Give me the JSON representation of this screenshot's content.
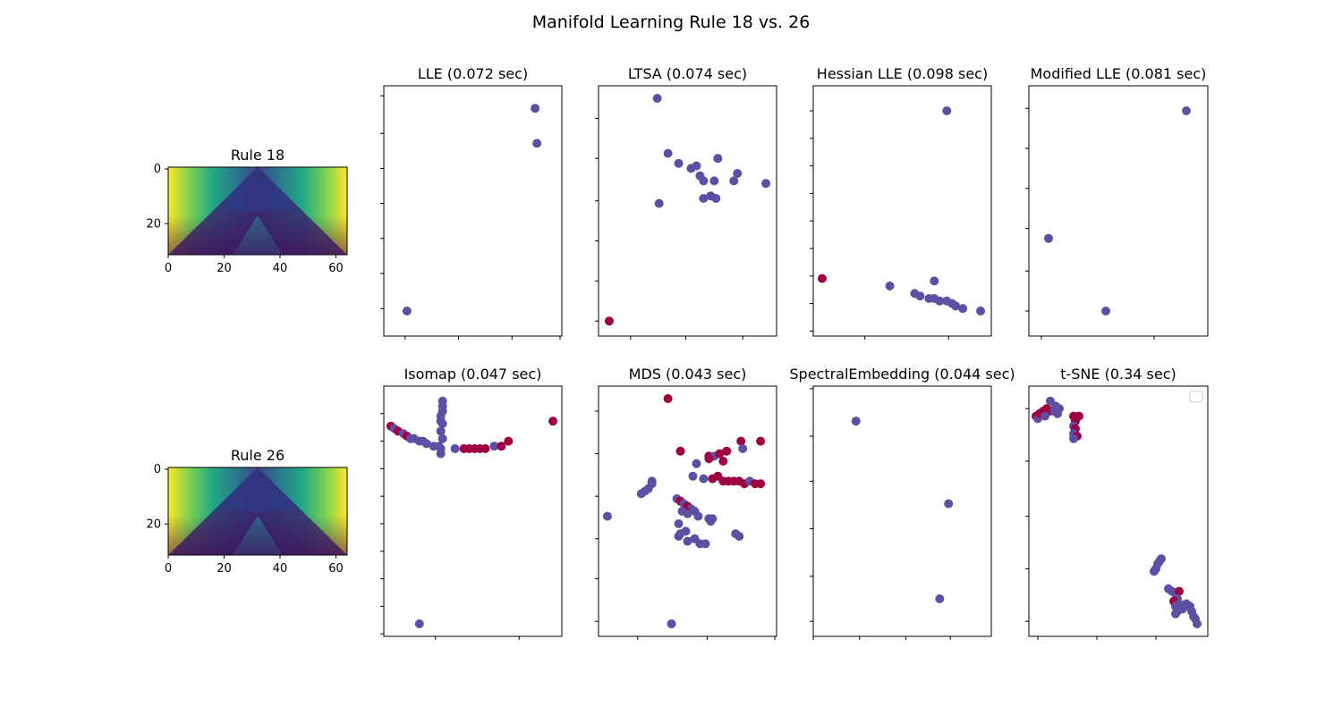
{
  "figure": {
    "suptitle": "Manifold Learning Rule 18 vs. 26"
  },
  "colors": {
    "class_a": "#5e4fa2",
    "class_b": "#9e0142"
  },
  "chart_data": [
    {
      "type": "heatmap",
      "panel": "rule18",
      "title": "Rule 18",
      "colormap": "viridis",
      "xlim": [
        0,
        64
      ],
      "ylim": [
        0,
        32
      ],
      "xticks": [
        "0",
        "20",
        "40",
        "60"
      ],
      "yticks": [
        "0",
        "20"
      ],
      "y_inverted": true
    },
    {
      "type": "heatmap",
      "panel": "rule26",
      "title": "Rule 26",
      "colormap": "viridis",
      "xlim": [
        0,
        64
      ],
      "ylim": [
        0,
        32
      ],
      "xticks": [
        "0",
        "20",
        "40",
        "60"
      ],
      "yticks": [
        "0",
        "20"
      ],
      "y_inverted": true
    },
    {
      "type": "scatter",
      "panel": "lle",
      "title": "LLE (0.072 sec)",
      "xlim": [
        0,
        1
      ],
      "ylim": [
        0,
        1
      ],
      "xticks": [
        0.12,
        0.42,
        0.72,
        0.99
      ],
      "yticks": [
        0.11,
        0.25,
        0.39,
        0.53,
        0.67,
        0.81,
        0.96
      ],
      "points": [
        {
          "x": 0.13,
          "y": 0.1,
          "c": "a"
        },
        {
          "x": 0.85,
          "y": 0.91,
          "c": "a"
        },
        {
          "x": 0.86,
          "y": 0.77,
          "c": "a"
        }
      ]
    },
    {
      "type": "scatter",
      "panel": "ltsa",
      "title": "LTSA (0.074 sec)",
      "xlim": [
        0,
        1
      ],
      "ylim": [
        0,
        1
      ],
      "xticks": [
        0.18,
        0.49,
        0.81
      ],
      "yticks": [
        0.06,
        0.22,
        0.38,
        0.54,
        0.71,
        0.87
      ],
      "points": [
        {
          "x": 0.06,
          "y": 0.06,
          "c": "b"
        },
        {
          "x": 0.33,
          "y": 0.95,
          "c": "a"
        },
        {
          "x": 0.34,
          "y": 0.53,
          "c": "a"
        },
        {
          "x": 0.39,
          "y": 0.73,
          "c": "a"
        },
        {
          "x": 0.45,
          "y": 0.69,
          "c": "a"
        },
        {
          "x": 0.52,
          "y": 0.67,
          "c": "a"
        },
        {
          "x": 0.55,
          "y": 0.68,
          "c": "a"
        },
        {
          "x": 0.57,
          "y": 0.64,
          "c": "a"
        },
        {
          "x": 0.59,
          "y": 0.62,
          "c": "a"
        },
        {
          "x": 0.63,
          "y": 0.56,
          "c": "a"
        },
        {
          "x": 0.65,
          "y": 0.62,
          "c": "a"
        },
        {
          "x": 0.67,
          "y": 0.71,
          "c": "a"
        },
        {
          "x": 0.66,
          "y": 0.55,
          "c": "a"
        },
        {
          "x": 0.76,
          "y": 0.62,
          "c": "a"
        },
        {
          "x": 0.78,
          "y": 0.65,
          "c": "a"
        },
        {
          "x": 0.94,
          "y": 0.61,
          "c": "a"
        },
        {
          "x": 0.59,
          "y": 0.55,
          "c": "a"
        }
      ]
    },
    {
      "type": "scatter",
      "panel": "hessian",
      "title": "Hessian LLE (0.098 sec)",
      "xlim": [
        0,
        1
      ],
      "ylim": [
        0,
        1
      ],
      "xticks": [
        0.29,
        0.76
      ],
      "yticks": [
        0.02,
        0.13,
        0.24,
        0.35,
        0.46,
        0.57,
        0.68,
        0.79,
        0.9
      ],
      "points": [
        {
          "x": 0.05,
          "y": 0.23,
          "c": "b"
        },
        {
          "x": 0.43,
          "y": 0.2,
          "c": "a"
        },
        {
          "x": 0.57,
          "y": 0.17,
          "c": "a"
        },
        {
          "x": 0.6,
          "y": 0.16,
          "c": "a"
        },
        {
          "x": 0.65,
          "y": 0.15,
          "c": "a"
        },
        {
          "x": 0.68,
          "y": 0.15,
          "c": "a"
        },
        {
          "x": 0.71,
          "y": 0.14,
          "c": "a"
        },
        {
          "x": 0.75,
          "y": 0.14,
          "c": "a"
        },
        {
          "x": 0.78,
          "y": 0.13,
          "c": "a"
        },
        {
          "x": 0.8,
          "y": 0.12,
          "c": "a"
        },
        {
          "x": 0.84,
          "y": 0.11,
          "c": "a"
        },
        {
          "x": 0.94,
          "y": 0.1,
          "c": "a"
        },
        {
          "x": 0.68,
          "y": 0.22,
          "c": "a"
        },
        {
          "x": 0.75,
          "y": 0.9,
          "c": "a"
        }
      ]
    },
    {
      "type": "scatter",
      "panel": "modified",
      "title": "Modified LLE (0.081 sec)",
      "xlim": [
        0,
        1
      ],
      "ylim": [
        0,
        1
      ],
      "xticks": [
        0.07,
        0.7
      ],
      "yticks": [
        0.1,
        0.26,
        0.43,
        0.59,
        0.75,
        0.91
      ],
      "points": [
        {
          "x": 0.11,
          "y": 0.39,
          "c": "a"
        },
        {
          "x": 0.43,
          "y": 0.1,
          "c": "a"
        },
        {
          "x": 0.88,
          "y": 0.9,
          "c": "a"
        }
      ]
    },
    {
      "type": "scatter",
      "panel": "isomap",
      "title": "Isomap (0.047 sec)",
      "xlim": [
        0,
        1
      ],
      "ylim": [
        0,
        1
      ],
      "xticks": [
        0.29,
        0.76
      ],
      "yticks": [
        0.01,
        0.12,
        0.23,
        0.34,
        0.45,
        0.56,
        0.67,
        0.78,
        0.89
      ],
      "points": [
        {
          "x": 0.04,
          "y": 0.84,
          "c": "b"
        },
        {
          "x": 0.06,
          "y": 0.83,
          "c": "a"
        },
        {
          "x": 0.08,
          "y": 0.82,
          "c": "b"
        },
        {
          "x": 0.11,
          "y": 0.81,
          "c": "a"
        },
        {
          "x": 0.13,
          "y": 0.8,
          "c": "b"
        },
        {
          "x": 0.15,
          "y": 0.79,
          "c": "a"
        },
        {
          "x": 0.17,
          "y": 0.79,
          "c": "a"
        },
        {
          "x": 0.2,
          "y": 0.78,
          "c": "a"
        },
        {
          "x": 0.22,
          "y": 0.78,
          "c": "a"
        },
        {
          "x": 0.24,
          "y": 0.77,
          "c": "a"
        },
        {
          "x": 0.28,
          "y": 0.76,
          "c": "a"
        },
        {
          "x": 0.31,
          "y": 0.76,
          "c": "a"
        },
        {
          "x": 0.32,
          "y": 0.75,
          "c": "a"
        },
        {
          "x": 0.32,
          "y": 0.73,
          "c": "a"
        },
        {
          "x": 0.32,
          "y": 0.86,
          "c": "a"
        },
        {
          "x": 0.32,
          "y": 0.88,
          "c": "a"
        },
        {
          "x": 0.33,
          "y": 0.9,
          "c": "a"
        },
        {
          "x": 0.33,
          "y": 0.92,
          "c": "a"
        },
        {
          "x": 0.33,
          "y": 0.94,
          "c": "a"
        },
        {
          "x": 0.33,
          "y": 0.85,
          "c": "a"
        },
        {
          "x": 0.32,
          "y": 0.82,
          "c": "a"
        },
        {
          "x": 0.33,
          "y": 0.79,
          "c": "a"
        },
        {
          "x": 0.4,
          "y": 0.75,
          "c": "a"
        },
        {
          "x": 0.45,
          "y": 0.75,
          "c": "b"
        },
        {
          "x": 0.48,
          "y": 0.75,
          "c": "b"
        },
        {
          "x": 0.51,
          "y": 0.75,
          "c": "b"
        },
        {
          "x": 0.54,
          "y": 0.75,
          "c": "b"
        },
        {
          "x": 0.57,
          "y": 0.75,
          "c": "b"
        },
        {
          "x": 0.62,
          "y": 0.76,
          "c": "a"
        },
        {
          "x": 0.66,
          "y": 0.76,
          "c": "b"
        },
        {
          "x": 0.7,
          "y": 0.78,
          "c": "b"
        },
        {
          "x": 0.95,
          "y": 0.86,
          "c": "b"
        },
        {
          "x": 0.2,
          "y": 0.05,
          "c": "a"
        }
      ]
    },
    {
      "type": "scatter",
      "panel": "mds",
      "title": "MDS (0.043 sec)",
      "xlim": [
        0,
        1
      ],
      "ylim": [
        0,
        1
      ],
      "xticks": [
        0.22,
        0.61,
        0.99
      ],
      "yticks": [
        0.06,
        0.23,
        0.39,
        0.56,
        0.73,
        0.9
      ],
      "points": [
        {
          "x": 0.39,
          "y": 0.95,
          "c": "b"
        },
        {
          "x": 0.41,
          "y": 0.05,
          "c": "a"
        },
        {
          "x": 0.05,
          "y": 0.48,
          "c": "a"
        },
        {
          "x": 0.24,
          "y": 0.57,
          "c": "a"
        },
        {
          "x": 0.26,
          "y": 0.58,
          "c": "a"
        },
        {
          "x": 0.28,
          "y": 0.59,
          "c": "a"
        },
        {
          "x": 0.3,
          "y": 0.61,
          "c": "a"
        },
        {
          "x": 0.3,
          "y": 0.62,
          "c": "a"
        },
        {
          "x": 0.46,
          "y": 0.74,
          "c": "b"
        },
        {
          "x": 0.55,
          "y": 0.69,
          "c": "a"
        },
        {
          "x": 0.53,
          "y": 0.64,
          "c": "a"
        },
        {
          "x": 0.59,
          "y": 0.63,
          "c": "a"
        },
        {
          "x": 0.62,
          "y": 0.72,
          "c": "b"
        },
        {
          "x": 0.65,
          "y": 0.72,
          "c": "a"
        },
        {
          "x": 0.68,
          "y": 0.73,
          "c": "b"
        },
        {
          "x": 0.72,
          "y": 0.74,
          "c": "b"
        },
        {
          "x": 0.64,
          "y": 0.63,
          "c": "b"
        },
        {
          "x": 0.67,
          "y": 0.64,
          "c": "b"
        },
        {
          "x": 0.7,
          "y": 0.62,
          "c": "b"
        },
        {
          "x": 0.73,
          "y": 0.62,
          "c": "b"
        },
        {
          "x": 0.76,
          "y": 0.62,
          "c": "b"
        },
        {
          "x": 0.79,
          "y": 0.62,
          "c": "b"
        },
        {
          "x": 0.82,
          "y": 0.61,
          "c": "b"
        },
        {
          "x": 0.85,
          "y": 0.62,
          "c": "a"
        },
        {
          "x": 0.88,
          "y": 0.61,
          "c": "b"
        },
        {
          "x": 0.91,
          "y": 0.61,
          "c": "b"
        },
        {
          "x": 0.8,
          "y": 0.78,
          "c": "b"
        },
        {
          "x": 0.91,
          "y": 0.78,
          "c": "b"
        },
        {
          "x": 0.81,
          "y": 0.75,
          "c": "a"
        },
        {
          "x": 0.62,
          "y": 0.71,
          "c": "b"
        },
        {
          "x": 0.7,
          "y": 0.7,
          "c": "b"
        },
        {
          "x": 0.44,
          "y": 0.55,
          "c": "a"
        },
        {
          "x": 0.46,
          "y": 0.54,
          "c": "b"
        },
        {
          "x": 0.48,
          "y": 0.53,
          "c": "a"
        },
        {
          "x": 0.5,
          "y": 0.52,
          "c": "b"
        },
        {
          "x": 0.52,
          "y": 0.51,
          "c": "a"
        },
        {
          "x": 0.49,
          "y": 0.5,
          "c": "b"
        },
        {
          "x": 0.47,
          "y": 0.5,
          "c": "a"
        },
        {
          "x": 0.54,
          "y": 0.5,
          "c": "a"
        },
        {
          "x": 0.5,
          "y": 0.49,
          "c": "a"
        },
        {
          "x": 0.45,
          "y": 0.45,
          "c": "a"
        },
        {
          "x": 0.49,
          "y": 0.42,
          "c": "a"
        },
        {
          "x": 0.46,
          "y": 0.41,
          "c": "a"
        },
        {
          "x": 0.5,
          "y": 0.38,
          "c": "a"
        },
        {
          "x": 0.54,
          "y": 0.39,
          "c": "a"
        },
        {
          "x": 0.57,
          "y": 0.37,
          "c": "a"
        },
        {
          "x": 0.6,
          "y": 0.37,
          "c": "a"
        },
        {
          "x": 0.62,
          "y": 0.47,
          "c": "a"
        },
        {
          "x": 0.64,
          "y": 0.47,
          "c": "a"
        },
        {
          "x": 0.63,
          "y": 0.46,
          "c": "a"
        },
        {
          "x": 0.77,
          "y": 0.41,
          "c": "a"
        },
        {
          "x": 0.79,
          "y": 0.4,
          "c": "a"
        },
        {
          "x": 0.45,
          "y": 0.4,
          "c": "a"
        },
        {
          "x": 0.56,
          "y": 0.48,
          "c": "a"
        }
      ]
    },
    {
      "type": "scatter",
      "panel": "spectral",
      "title": "SpectralEmbedding (0.044 sec)",
      "xlim": [
        0,
        1
      ],
      "ylim": [
        0,
        1
      ],
      "xticks": [
        0.0,
        0.26,
        0.52,
        0.77
      ],
      "yticks": [
        0.06,
        0.24,
        0.43,
        0.62,
        0.8,
        0.99
      ],
      "points": [
        {
          "x": 0.24,
          "y": 0.86,
          "c": "a"
        },
        {
          "x": 0.76,
          "y": 0.53,
          "c": "a"
        },
        {
          "x": 0.71,
          "y": 0.15,
          "c": "a"
        }
      ]
    },
    {
      "type": "scatter",
      "panel": "tsne",
      "title": "t-SNE (0.34 sec)",
      "xlim": [
        0,
        1
      ],
      "ylim": [
        0,
        1
      ],
      "xticks": [
        0.05,
        0.38,
        0.71
      ],
      "yticks": [
        0.06,
        0.27,
        0.48,
        0.7,
        0.91
      ],
      "legend": "top-right",
      "points": [
        {
          "x": 0.04,
          "y": 0.88,
          "c": "b"
        },
        {
          "x": 0.05,
          "y": 0.87,
          "c": "a"
        },
        {
          "x": 0.06,
          "y": 0.89,
          "c": "b"
        },
        {
          "x": 0.08,
          "y": 0.9,
          "c": "b"
        },
        {
          "x": 0.1,
          "y": 0.91,
          "c": "b"
        },
        {
          "x": 0.12,
          "y": 0.94,
          "c": "a"
        },
        {
          "x": 0.12,
          "y": 0.9,
          "c": "b"
        },
        {
          "x": 0.14,
          "y": 0.9,
          "c": "a"
        },
        {
          "x": 0.15,
          "y": 0.92,
          "c": "a"
        },
        {
          "x": 0.16,
          "y": 0.89,
          "c": "a"
        },
        {
          "x": 0.17,
          "y": 0.91,
          "c": "a"
        },
        {
          "x": 0.09,
          "y": 0.88,
          "c": "a"
        },
        {
          "x": 0.25,
          "y": 0.88,
          "c": "b"
        },
        {
          "x": 0.26,
          "y": 0.86,
          "c": "b"
        },
        {
          "x": 0.25,
          "y": 0.84,
          "c": "a"
        },
        {
          "x": 0.26,
          "y": 0.83,
          "c": "b"
        },
        {
          "x": 0.25,
          "y": 0.81,
          "c": "a"
        },
        {
          "x": 0.27,
          "y": 0.8,
          "c": "b"
        },
        {
          "x": 0.25,
          "y": 0.79,
          "c": "a"
        },
        {
          "x": 0.28,
          "y": 0.88,
          "c": "b"
        },
        {
          "x": 0.7,
          "y": 0.26,
          "c": "a"
        },
        {
          "x": 0.71,
          "y": 0.27,
          "c": "a"
        },
        {
          "x": 0.72,
          "y": 0.29,
          "c": "a"
        },
        {
          "x": 0.73,
          "y": 0.3,
          "c": "a"
        },
        {
          "x": 0.74,
          "y": 0.31,
          "c": "a"
        },
        {
          "x": 0.78,
          "y": 0.19,
          "c": "a"
        },
        {
          "x": 0.8,
          "y": 0.18,
          "c": "a"
        },
        {
          "x": 0.82,
          "y": 0.17,
          "c": "a"
        },
        {
          "x": 0.84,
          "y": 0.18,
          "c": "b"
        },
        {
          "x": 0.83,
          "y": 0.15,
          "c": "a"
        },
        {
          "x": 0.81,
          "y": 0.14,
          "c": "b"
        },
        {
          "x": 0.84,
          "y": 0.13,
          "c": "a"
        },
        {
          "x": 0.82,
          "y": 0.12,
          "c": "a"
        },
        {
          "x": 0.85,
          "y": 0.12,
          "c": "a"
        },
        {
          "x": 0.83,
          "y": 0.1,
          "c": "a"
        },
        {
          "x": 0.86,
          "y": 0.11,
          "c": "a"
        },
        {
          "x": 0.88,
          "y": 0.13,
          "c": "a"
        },
        {
          "x": 0.9,
          "y": 0.12,
          "c": "a"
        },
        {
          "x": 0.91,
          "y": 0.1,
          "c": "a"
        },
        {
          "x": 0.92,
          "y": 0.08,
          "c": "a"
        },
        {
          "x": 0.93,
          "y": 0.07,
          "c": "a"
        },
        {
          "x": 0.94,
          "y": 0.05,
          "c": "a"
        },
        {
          "x": 0.82,
          "y": 0.09,
          "c": "a"
        }
      ]
    }
  ]
}
